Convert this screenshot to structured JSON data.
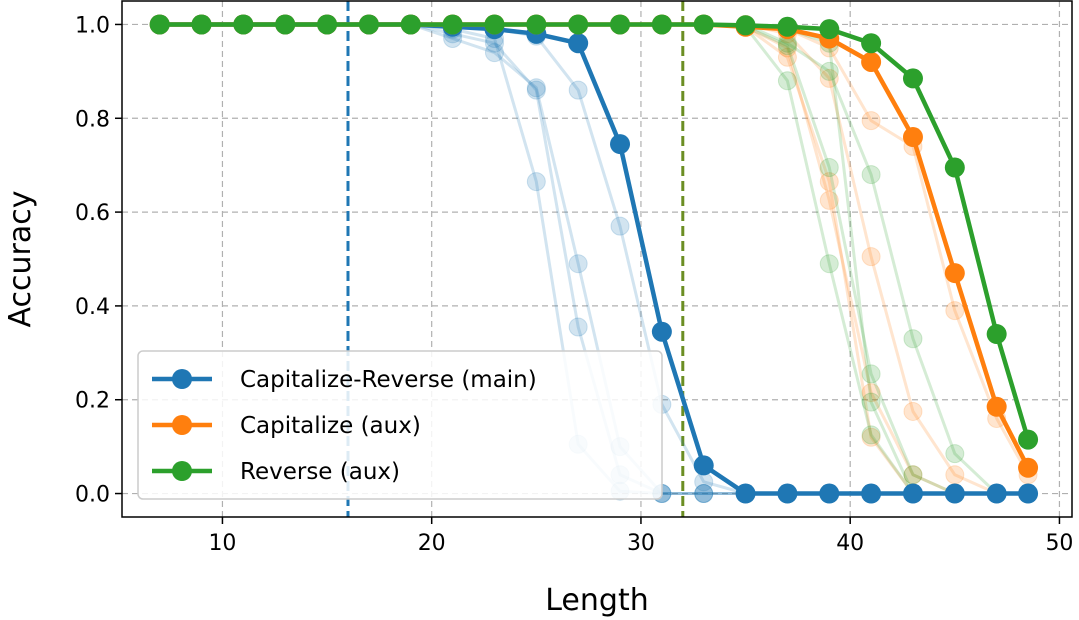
{
  "chart_data": {
    "type": "line",
    "title": "",
    "xlabel": "Length",
    "ylabel": "Accuracy",
    "xlim": [
      5.2,
      50.6
    ],
    "ylim": [
      -0.05,
      1.05
    ],
    "xticks": [
      10,
      20,
      30,
      40,
      50
    ],
    "yticks": [
      0.0,
      0.2,
      0.4,
      0.6,
      0.8,
      1.0
    ],
    "xtick_labels": [
      "10",
      "20",
      "30",
      "40",
      "50"
    ],
    "ytick_labels": [
      "0.0",
      "0.2",
      "0.4",
      "0.6",
      "0.8",
      "1.0"
    ],
    "grid": true,
    "legend_position": "lower-left",
    "vlines": [
      {
        "x": 16,
        "color": "#1f77b4"
      },
      {
        "x": 32,
        "color": "#6b8e23"
      }
    ],
    "series": [
      {
        "name": "Capitalize-Reverse (main)",
        "color": "#1f77b4",
        "x": [
          7,
          9,
          11,
          13,
          15,
          17,
          19,
          21,
          23,
          25,
          27,
          29,
          31,
          33,
          35,
          37,
          39,
          41,
          43,
          45,
          47,
          48.5
        ],
        "y": [
          1.0,
          1.0,
          1.0,
          1.0,
          1.0,
          1.0,
          1.0,
          0.995,
          0.99,
          0.98,
          0.96,
          0.745,
          0.345,
          0.06,
          0.0,
          0.0,
          0.0,
          0.0,
          0.0,
          0.0,
          0.0,
          0.0
        ]
      },
      {
        "name": "Capitalize (aux)",
        "color": "#ff7f0e",
        "x": [
          7,
          9,
          11,
          13,
          15,
          17,
          19,
          21,
          23,
          25,
          27,
          29,
          31,
          33,
          35,
          37,
          39,
          41,
          43,
          45,
          47,
          48.5
        ],
        "y": [
          1.0,
          1.0,
          1.0,
          1.0,
          1.0,
          1.0,
          1.0,
          1.0,
          1.0,
          1.0,
          1.0,
          1.0,
          1.0,
          1.0,
          0.995,
          0.99,
          0.97,
          0.92,
          0.76,
          0.47,
          0.185,
          0.055
        ]
      },
      {
        "name": "Reverse (aux)",
        "color": "#2ca02c",
        "x": [
          7,
          9,
          11,
          13,
          15,
          17,
          19,
          21,
          23,
          25,
          27,
          29,
          31,
          33,
          35,
          37,
          39,
          41,
          43,
          45,
          47,
          48.5
        ],
        "y": [
          1.0,
          1.0,
          1.0,
          1.0,
          1.0,
          1.0,
          1.0,
          1.0,
          1.0,
          1.0,
          1.0,
          1.0,
          1.0,
          1.0,
          0.998,
          0.995,
          0.99,
          0.96,
          0.885,
          0.695,
          0.34,
          0.115
        ]
      }
    ],
    "faint_series": [
      {
        "color": "#1f77b4",
        "x": [
          7,
          9,
          11,
          13,
          15,
          17,
          19,
          21,
          23,
          25,
          27,
          29,
          31,
          33,
          35
        ],
        "y": [
          1.0,
          1.0,
          1.0,
          1.0,
          1.0,
          1.0,
          1.0,
          0.97,
          0.94,
          0.865,
          0.49,
          0.1,
          0.0,
          0.0,
          0.0
        ]
      },
      {
        "color": "#1f77b4",
        "x": [
          7,
          9,
          11,
          13,
          15,
          17,
          19,
          21,
          23,
          25,
          27,
          29,
          31,
          33,
          35
        ],
        "y": [
          1.0,
          1.0,
          1.0,
          1.0,
          1.0,
          1.0,
          1.0,
          0.98,
          0.96,
          0.86,
          0.355,
          0.04,
          0.0,
          0.0,
          0.0
        ]
      },
      {
        "color": "#1f77b4",
        "x": [
          7,
          9,
          11,
          13,
          15,
          17,
          19,
          21,
          23,
          25,
          27,
          29,
          31,
          33,
          35
        ],
        "y": [
          1.0,
          1.0,
          1.0,
          1.0,
          1.0,
          1.0,
          1.0,
          0.99,
          0.97,
          0.665,
          0.105,
          0.005,
          0.0,
          0.0,
          0.0
        ]
      },
      {
        "color": "#1f77b4",
        "x": [
          7,
          9,
          11,
          13,
          15,
          17,
          19,
          21,
          23,
          25,
          27,
          29,
          31,
          33,
          35
        ],
        "y": [
          1.0,
          1.0,
          1.0,
          1.0,
          1.0,
          1.0,
          1.0,
          1.0,
          0.99,
          0.975,
          0.86,
          0.57,
          0.19,
          0.025,
          0.0
        ]
      },
      {
        "color": "#ff7f0e",
        "x": [
          31,
          33,
          35,
          37,
          39,
          41,
          43,
          45,
          47,
          48.5
        ],
        "y": [
          1.0,
          1.0,
          0.995,
          0.95,
          0.625,
          0.215,
          0.04,
          0.0,
          0.0,
          0.0
        ]
      },
      {
        "color": "#ff7f0e",
        "x": [
          31,
          33,
          35,
          37,
          39,
          41,
          43,
          45,
          47,
          48.5
        ],
        "y": [
          1.0,
          1.0,
          0.995,
          0.93,
          0.665,
          0.12,
          0.0,
          0.0,
          0.0,
          0.0
        ]
      },
      {
        "color": "#ff7f0e",
        "x": [
          31,
          33,
          35,
          37,
          39,
          41,
          43,
          45,
          47,
          48.5
        ],
        "y": [
          1.0,
          1.0,
          1.0,
          0.98,
          0.885,
          0.505,
          0.175,
          0.04,
          0.0,
          0.0
        ]
      },
      {
        "color": "#ff7f0e",
        "x": [
          31,
          33,
          35,
          37,
          39,
          41,
          43,
          45,
          47,
          48.5
        ],
        "y": [
          1.0,
          1.0,
          1.0,
          0.99,
          0.95,
          0.795,
          0.74,
          0.39,
          0.16,
          0.04
        ]
      },
      {
        "color": "#2ca02c",
        "x": [
          31,
          33,
          35,
          37,
          39,
          41,
          43,
          45,
          47,
          48.5
        ],
        "y": [
          1.0,
          1.0,
          0.995,
          0.88,
          0.49,
          0.125,
          0.0,
          0.0,
          0.0,
          0.0
        ]
      },
      {
        "color": "#2ca02c",
        "x": [
          31,
          33,
          35,
          37,
          39,
          41,
          43,
          45,
          47,
          48.5
        ],
        "y": [
          1.0,
          1.0,
          0.995,
          0.955,
          0.695,
          0.255,
          0.04,
          0.0,
          0.0,
          0.0
        ]
      },
      {
        "color": "#2ca02c",
        "x": [
          31,
          33,
          35,
          37,
          39,
          41,
          43,
          45,
          47,
          48.5
        ],
        "y": [
          1.0,
          1.0,
          1.0,
          0.96,
          0.9,
          0.68,
          0.33,
          0.085,
          0.0,
          0.0
        ]
      },
      {
        "color": "#2ca02c",
        "x": [
          31,
          33,
          35,
          37,
          39,
          41,
          43,
          45,
          47,
          48.5
        ],
        "y": [
          1.0,
          1.0,
          1.0,
          0.99,
          0.96,
          0.195,
          0.0,
          0.0,
          0.0,
          0.0
        ]
      }
    ]
  }
}
